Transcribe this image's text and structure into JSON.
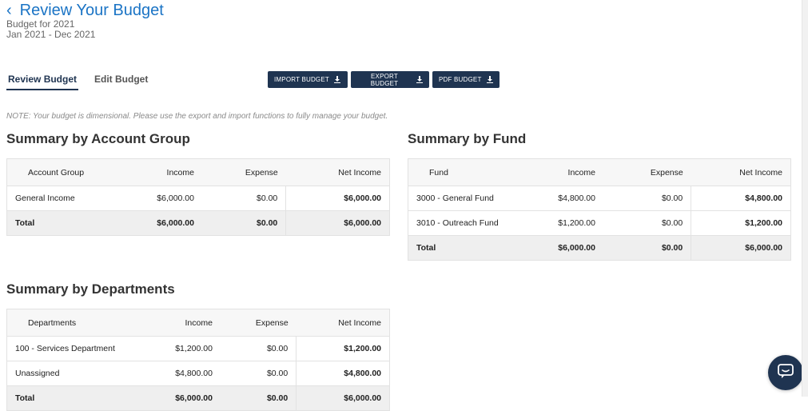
{
  "header": {
    "title": "Review Your Budget",
    "subtitle_line1": "Budget for 2021",
    "subtitle_line2": "Jan 2021 - Dec 2021"
  },
  "tabs": [
    {
      "label": "Review Budget",
      "active": true
    },
    {
      "label": "Edit Budget",
      "active": false
    }
  ],
  "actions": {
    "import_label": "IMPORT BUDGET",
    "export_label": "EXPORT BUDGET",
    "pdf_label": "PDF BUDGET"
  },
  "note": "NOTE: Your budget is dimensional. Please use the export and import functions to fully manage your budget.",
  "account_group": {
    "title": "Summary by Account Group",
    "columns": [
      "Account Group",
      "Income",
      "Expense",
      "Net Income"
    ],
    "rows": [
      {
        "name": "General Income",
        "income": "$6,000.00",
        "expense": "$0.00",
        "net": "$6,000.00"
      }
    ],
    "total": {
      "name": "Total",
      "income": "$6,000.00",
      "expense": "$0.00",
      "net": "$6,000.00"
    }
  },
  "fund": {
    "title": "Summary by Fund",
    "columns": [
      "Fund",
      "Income",
      "Expense",
      "Net Income"
    ],
    "rows": [
      {
        "name": "3000 - General Fund",
        "income": "$4,800.00",
        "expense": "$0.00",
        "net": "$4,800.00"
      },
      {
        "name": "3010 - Outreach Fund",
        "income": "$1,200.00",
        "expense": "$0.00",
        "net": "$1,200.00"
      }
    ],
    "total": {
      "name": "Total",
      "income": "$6,000.00",
      "expense": "$0.00",
      "net": "$6,000.00"
    }
  },
  "departments": {
    "title": "Summary by Departments",
    "columns": [
      "Departments",
      "Income",
      "Expense",
      "Net Income"
    ],
    "rows": [
      {
        "name": "100 - Services Department",
        "income": "$1,200.00",
        "expense": "$0.00",
        "net": "$1,200.00"
      },
      {
        "name": "Unassigned",
        "income": "$4,800.00",
        "expense": "$0.00",
        "net": "$4,800.00"
      }
    ],
    "total": {
      "name": "Total",
      "income": "$6,000.00",
      "expense": "$0.00",
      "net": "$6,000.00"
    }
  },
  "icons": {
    "back": "chevron-left-icon",
    "download": "download-icon",
    "chat": "chat-bubble-icon"
  },
  "colors": {
    "accent": "#1b74c5",
    "primary_dark": "#1f3451"
  }
}
